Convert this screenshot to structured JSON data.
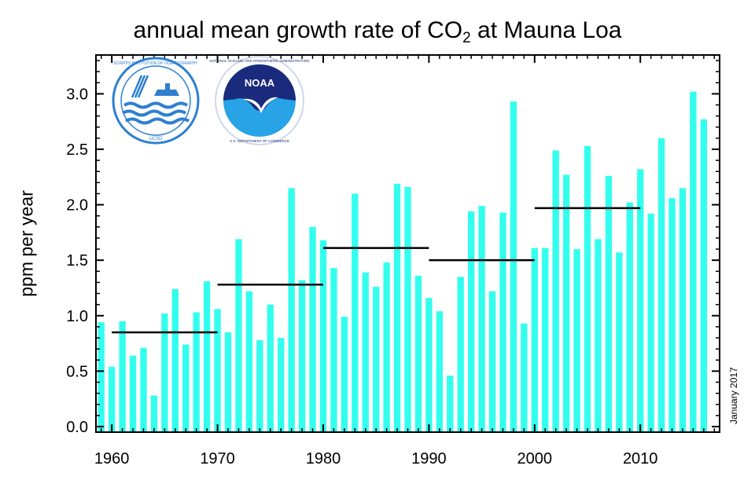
{
  "chart_data": {
    "type": "bar",
    "title": "annual mean growth rate of CO",
    "title_subscript": "2",
    "title_suffix": " at Mauna Loa",
    "xlabel": "",
    "ylabel": "ppm per year",
    "date_note": "January 2017",
    "xlim": [
      1958.5,
      2017.5
    ],
    "ylim": [
      -0.05,
      3.35
    ],
    "x_ticks": [
      1960,
      1970,
      1980,
      1990,
      2000,
      2010
    ],
    "y_ticks": [
      "0.0",
      "0.5",
      "1.0",
      "1.5",
      "2.0",
      "2.5",
      "3.0"
    ],
    "bar_color": "#33ffee",
    "series": [
      {
        "x": [
          1959,
          1960,
          1961,
          1962,
          1963,
          1964,
          1965,
          1966,
          1967,
          1968,
          1969,
          1970,
          1971,
          1972,
          1973,
          1974,
          1975,
          1976,
          1977,
          1978,
          1979,
          1980,
          1981,
          1982,
          1983,
          1984,
          1985,
          1986,
          1987,
          1988,
          1989,
          1990,
          1991,
          1992,
          1993,
          1994,
          1995,
          1996,
          1997,
          1998,
          1999,
          2000,
          2001,
          2002,
          2003,
          2004,
          2005,
          2006,
          2007,
          2008,
          2009,
          2010,
          2011,
          2012,
          2013,
          2014,
          2015,
          2016
        ],
        "values": [
          0.94,
          0.54,
          0.95,
          0.64,
          0.71,
          0.28,
          1.02,
          1.24,
          0.74,
          1.03,
          1.31,
          1.06,
          0.85,
          1.69,
          1.22,
          0.78,
          1.1,
          0.8,
          2.15,
          1.32,
          1.8,
          1.68,
          1.43,
          0.99,
          2.1,
          1.39,
          1.26,
          1.48,
          2.19,
          2.16,
          1.36,
          1.16,
          1.04,
          0.46,
          1.35,
          1.94,
          1.99,
          1.22,
          1.93,
          2.93,
          0.93,
          1.61,
          1.61,
          2.49,
          2.27,
          1.6,
          2.53,
          1.69,
          2.26,
          1.57,
          2.02,
          2.32,
          1.92,
          2.6,
          2.06,
          2.15,
          3.02,
          2.77
        ]
      }
    ],
    "decadal_means": [
      {
        "from": 1960,
        "to": 1970,
        "value": 0.85
      },
      {
        "from": 1970,
        "to": 1980,
        "value": 1.28
      },
      {
        "from": 1980,
        "to": 1990,
        "value": 1.61
      },
      {
        "from": 1990,
        "to": 2000,
        "value": 1.5
      },
      {
        "from": 2000,
        "to": 2010,
        "value": 1.97
      }
    ],
    "logos": [
      {
        "name": "scripts-ucsd-seal",
        "text": "SCRIPPS INSTITUTION OF OCEANOGRAPHY · UCSD",
        "colors": [
          "#2e7fd0",
          "#ffffff"
        ]
      },
      {
        "name": "noaa-logo",
        "text": "NOAA",
        "ring_text": "NATIONAL OCEANIC AND ATMOSPHERIC ADMINISTRATION · U.S. DEPARTMENT OF COMMERCE",
        "colors": [
          "#1a2a7c",
          "#27a3e6"
        ]
      }
    ]
  }
}
